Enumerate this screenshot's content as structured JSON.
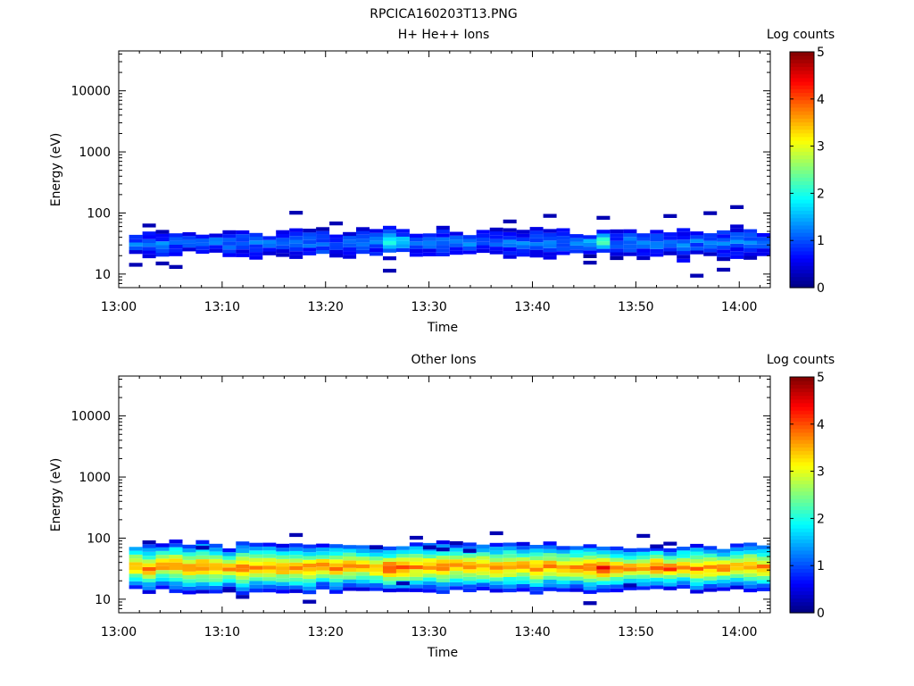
{
  "figure_title": "RPCICA160203T13.PNG",
  "chart_data": [
    {
      "type": "heatmap",
      "title": "H+ He++ Ions",
      "xlabel": "Time",
      "ylabel": "Energy (eV)",
      "x_range": [
        "13:00",
        "14:03"
      ],
      "x_ticks": [
        "13:00",
        "13:10",
        "13:20",
        "13:30",
        "13:40",
        "13:50",
        "14:00"
      ],
      "y_scale": "log",
      "ylim": [
        6,
        45000
      ],
      "y_ticks": [
        10,
        100,
        1000,
        10000
      ],
      "y_tick_labels": [
        "10",
        "100",
        "1000",
        "10000"
      ],
      "colorbar": {
        "label": "Log counts",
        "min": 0,
        "max": 5,
        "ticks": [
          "0",
          "1",
          "2",
          "3",
          "4",
          "5"
        ],
        "colormap": "jet"
      },
      "band": {
        "center_energy": 30,
        "peak_log_counts": 2.3,
        "typical_log_counts": 0.8
      },
      "features": [
        {
          "time": "13:26",
          "energy": 35,
          "log_counts": 2.0
        },
        {
          "time": "13:46",
          "energy": 35,
          "log_counts": 2.2
        },
        {
          "time": "13:46",
          "energy": 50,
          "log_counts": 2.0
        }
      ]
    },
    {
      "type": "heatmap",
      "title": "Other Ions",
      "xlabel": "Time",
      "ylabel": "Energy (eV)",
      "x_range": [
        "13:00",
        "14:03"
      ],
      "x_ticks": [
        "13:00",
        "13:10",
        "13:20",
        "13:30",
        "13:40",
        "13:50",
        "14:00"
      ],
      "y_scale": "log",
      "ylim": [
        6,
        45000
      ],
      "y_ticks": [
        10,
        100,
        1000,
        10000
      ],
      "y_tick_labels": [
        "10",
        "100",
        "1000",
        "10000"
      ],
      "colorbar": {
        "label": "Log counts",
        "min": 0,
        "max": 5,
        "ticks": [
          "0",
          "1",
          "2",
          "3",
          "4",
          "5"
        ],
        "colormap": "jet"
      },
      "band": {
        "center_energy": 31,
        "peak_log_counts": 4.0,
        "typical_log_counts": 3.3
      },
      "features": [
        {
          "time": "13:26",
          "energy": 33,
          "log_counts": 4.1
        },
        {
          "time": "13:46",
          "energy": 33,
          "log_counts": 4.0
        },
        {
          "time": "13:52",
          "energy": 30,
          "log_counts": 3.8
        }
      ]
    }
  ]
}
